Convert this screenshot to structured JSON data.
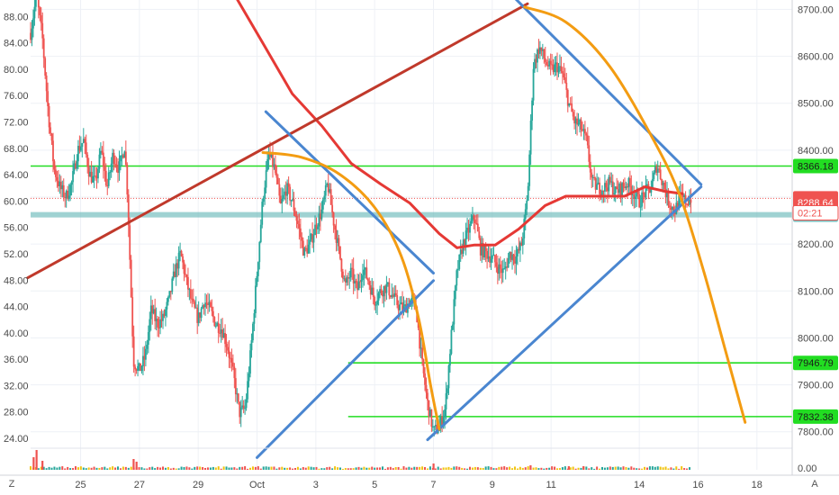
{
  "chart_data": {
    "type": "candlestick",
    "left_axis": {
      "ticks": [
        "88.00",
        "84.00",
        "80.00",
        "76.00",
        "72.00",
        "68.00",
        "64.00",
        "60.00",
        "56.00",
        "52.00",
        "48.00",
        "44.00",
        "40.00",
        "36.00",
        "32.00",
        "28.00",
        "24.00"
      ],
      "range": [
        22.5,
        90.5
      ]
    },
    "right_axis": {
      "ticks": [
        "8700.00",
        "8600.00",
        "8500.00",
        "8400.00",
        "8300.00",
        "8200.00",
        "8100.00",
        "8000.00",
        "7900.00",
        "7800.00"
      ],
      "range": [
        7765,
        8720
      ]
    },
    "volume_axis_label": "0.00",
    "x_axis": {
      "labels": [
        "25",
        "27",
        "29",
        "Oct",
        "3",
        "5",
        "7",
        "9",
        "11",
        "14",
        "16",
        "18"
      ],
      "days": [
        25,
        27,
        29,
        31,
        33,
        35,
        37,
        39,
        41,
        44,
        46,
        48
      ],
      "range": [
        23.3,
        49.2
      ]
    },
    "horizontal_levels": [
      {
        "value": 8366.18,
        "label": "8366.18",
        "color": "#22dd22",
        "x_from": 23.3
      },
      {
        "value": 7946.79,
        "label": "7946.79",
        "color": "#22dd22",
        "x_from": 34.1
      },
      {
        "value": 7832.38,
        "label": "7832.38",
        "color": "#22dd22",
        "x_from": 34.1
      },
      {
        "value": 8262.47,
        "label": "8262.47",
        "color": "#7fc3c3",
        "x_from": 23.3
      }
    ],
    "price_tags": [
      {
        "value": 8297.39,
        "label": "8297.39",
        "bg": "#ef5350",
        "fg": "#ffffff"
      },
      {
        "value": 8288.64,
        "label": "8288.64",
        "bg": "#ef5350",
        "fg": "#ffffff"
      },
      {
        "value": 8266.5,
        "label": "02:21",
        "bg": "#ffffff",
        "fg": "#ef5350"
      }
    ],
    "current_price_line": 8297.39,
    "trendlines": [
      {
        "name": "long-rising-red",
        "color": "#c0392b",
        "points": [
          [
            23.2,
            8128
          ],
          [
            40.2,
            8712
          ]
        ]
      },
      {
        "name": "wedge-1-upper",
        "color": "#4a86d0",
        "points": [
          [
            31.3,
            8482
          ],
          [
            37.0,
            8138
          ]
        ]
      },
      {
        "name": "wedge-1-lower",
        "color": "#4a86d0",
        "points": [
          [
            31.0,
            7745
          ],
          [
            37.0,
            8122
          ]
        ]
      },
      {
        "name": "wedge-2-upper",
        "color": "#4a86d0",
        "points": [
          [
            39.8,
            8722
          ],
          [
            46.1,
            8327
          ]
        ]
      },
      {
        "name": "wedge-2-lower",
        "color": "#4a86d0",
        "points": [
          [
            36.8,
            7783
          ],
          [
            46.1,
            8322
          ]
        ]
      }
    ],
    "curves": [
      {
        "name": "arc-1",
        "color": "#f39c12",
        "points": [
          [
            31.2,
            8395
          ],
          [
            32.5,
            8385
          ],
          [
            33.8,
            8349
          ],
          [
            35.0,
            8278
          ],
          [
            35.9,
            8175
          ],
          [
            36.5,
            8040
          ],
          [
            36.9,
            7900
          ],
          [
            37.2,
            7805
          ]
        ]
      },
      {
        "name": "arc-2",
        "color": "#f39c12",
        "points": [
          [
            40.1,
            8705
          ],
          [
            41.5,
            8673
          ],
          [
            43.0,
            8578
          ],
          [
            44.5,
            8420
          ],
          [
            45.4,
            8300
          ],
          [
            46.2,
            8140
          ],
          [
            46.9,
            7980
          ],
          [
            47.6,
            7820
          ]
        ]
      }
    ],
    "moving_average": {
      "name": "MA",
      "color": "#e53935",
      "points": [
        [
          30.2,
          8735
        ],
        [
          31.2,
          8628
        ],
        [
          32.2,
          8520
        ],
        [
          33.2,
          8452
        ],
        [
          34.2,
          8372
        ],
        [
          35.2,
          8328
        ],
        [
          36.2,
          8287
        ],
        [
          37.2,
          8222
        ],
        [
          37.8,
          8192
        ],
        [
          38.4,
          8198
        ],
        [
          39.1,
          8198
        ],
        [
          39.9,
          8232
        ],
        [
          40.8,
          8282
        ],
        [
          41.5,
          8302
        ],
        [
          42.5,
          8302
        ],
        [
          43.5,
          8302
        ],
        [
          44.2,
          8322
        ],
        [
          44.9,
          8312
        ],
        [
          45.5,
          8307
        ]
      ]
    },
    "price_path": [
      [
        23.3,
        8650
      ],
      [
        23.5,
        8730
      ],
      [
        23.7,
        8640
      ],
      [
        23.9,
        8480
      ],
      [
        24.1,
        8360
      ],
      [
        24.3,
        8320
      ],
      [
        24.5,
        8300
      ],
      [
        24.7,
        8330
      ],
      [
        24.9,
        8400
      ],
      [
        25.1,
        8420
      ],
      [
        25.3,
        8350
      ],
      [
        25.5,
        8330
      ],
      [
        25.7,
        8400
      ],
      [
        25.9,
        8320
      ],
      [
        26.1,
        8390
      ],
      [
        26.3,
        8360
      ],
      [
        26.5,
        8410
      ],
      [
        26.6,
        8300
      ],
      [
        26.8,
        7950
      ],
      [
        27.0,
        7930
      ],
      [
        27.2,
        7960
      ],
      [
        27.4,
        8060
      ],
      [
        27.6,
        8030
      ],
      [
        27.8,
        8040
      ],
      [
        28.0,
        8080
      ],
      [
        28.2,
        8140
      ],
      [
        28.4,
        8180
      ],
      [
        28.6,
        8120
      ],
      [
        28.8,
        8070
      ],
      [
        29.0,
        8040
      ],
      [
        29.2,
        8080
      ],
      [
        29.4,
        8060
      ],
      [
        29.6,
        8030
      ],
      [
        29.8,
        8020
      ],
      [
        30.0,
        7980
      ],
      [
        30.2,
        7920
      ],
      [
        30.4,
        7840
      ],
      [
        30.6,
        7850
      ],
      [
        30.8,
        7980
      ],
      [
        31.0,
        8140
      ],
      [
        31.2,
        8300
      ],
      [
        31.4,
        8390
      ],
      [
        31.6,
        8360
      ],
      [
        31.8,
        8280
      ],
      [
        32.0,
        8320
      ],
      [
        32.2,
        8290
      ],
      [
        32.4,
        8240
      ],
      [
        32.6,
        8180
      ],
      [
        32.8,
        8200
      ],
      [
        33.0,
        8240
      ],
      [
        33.2,
        8270
      ],
      [
        33.4,
        8330
      ],
      [
        33.6,
        8250
      ],
      [
        33.8,
        8180
      ],
      [
        34.0,
        8110
      ],
      [
        34.2,
        8140
      ],
      [
        34.4,
        8100
      ],
      [
        34.6,
        8150
      ],
      [
        34.8,
        8120
      ],
      [
        35.0,
        8080
      ],
      [
        35.2,
        8100
      ],
      [
        35.4,
        8110
      ],
      [
        35.6,
        8090
      ],
      [
        35.8,
        8070
      ],
      [
        36.0,
        8060
      ],
      [
        36.2,
        8080
      ],
      [
        36.4,
        8070
      ],
      [
        36.6,
        7950
      ],
      [
        36.8,
        7860
      ],
      [
        37.0,
        7800
      ],
      [
        37.2,
        7810
      ],
      [
        37.4,
        7850
      ],
      [
        37.6,
        8000
      ],
      [
        37.8,
        8140
      ],
      [
        38.0,
        8200
      ],
      [
        38.2,
        8230
      ],
      [
        38.4,
        8260
      ],
      [
        38.6,
        8190
      ],
      [
        38.8,
        8180
      ],
      [
        39.0,
        8170
      ],
      [
        39.2,
        8150
      ],
      [
        39.4,
        8140
      ],
      [
        39.6,
        8180
      ],
      [
        39.8,
        8170
      ],
      [
        40.0,
        8200
      ],
      [
        40.2,
        8300
      ],
      [
        40.4,
        8580
      ],
      [
        40.6,
        8620
      ],
      [
        40.8,
        8590
      ],
      [
        41.0,
        8570
      ],
      [
        41.2,
        8580
      ],
      [
        41.4,
        8560
      ],
      [
        41.6,
        8500
      ],
      [
        41.8,
        8460
      ],
      [
        42.0,
        8450
      ],
      [
        42.2,
        8420
      ],
      [
        42.4,
        8330
      ],
      [
        42.6,
        8320
      ],
      [
        42.8,
        8320
      ],
      [
        43.0,
        8330
      ],
      [
        43.2,
        8310
      ],
      [
        43.4,
        8320
      ],
      [
        43.6,
        8330
      ],
      [
        43.8,
        8310
      ],
      [
        44.0,
        8290
      ],
      [
        44.2,
        8310
      ],
      [
        44.4,
        8320
      ],
      [
        44.6,
        8370
      ],
      [
        44.8,
        8330
      ],
      [
        45.0,
        8290
      ],
      [
        45.2,
        8270
      ],
      [
        45.4,
        8300
      ],
      [
        45.6,
        8290
      ],
      [
        45.8,
        8300
      ]
    ],
    "volume_spikes": [
      [
        23.5,
        22
      ],
      [
        23.4,
        14
      ],
      [
        23.7,
        10
      ],
      [
        26.8,
        12
      ],
      [
        26.9,
        9
      ],
      [
        37.0,
        7
      ],
      [
        40.3,
        5
      ],
      [
        41.6,
        4
      ],
      [
        42.1,
        4
      ]
    ]
  },
  "toolbar": {
    "tz_button": "Z",
    "auto_scale_button": "A"
  }
}
